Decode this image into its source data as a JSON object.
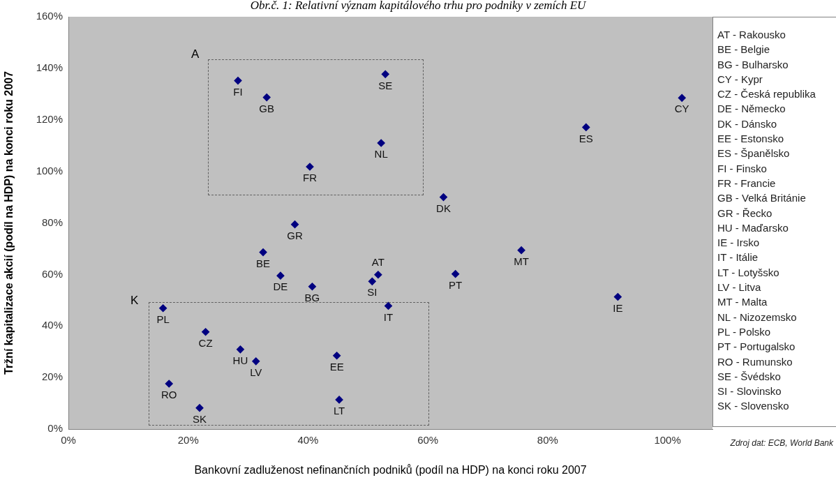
{
  "chart_data": {
    "type": "scatter",
    "title": "Obr.č. 1: Relativní význam kapitálového trhu pro podniky v zemích EU",
    "xlabel": "Bankovní zadluženost nefinančních podniků (podíl na HDP) na konci roku 2007",
    "ylabel": "Tržní kapitalizace akcií (podíl na HDP) na konci roku 2007",
    "xlim": [
      0,
      107.5
    ],
    "ylim": [
      0,
      160
    ],
    "xticks": [
      {
        "value": 0,
        "label": "0%"
      },
      {
        "value": 20,
        "label": "20%"
      },
      {
        "value": 40,
        "label": "40%"
      },
      {
        "value": 60,
        "label": "60%"
      },
      {
        "value": 80,
        "label": "80%"
      },
      {
        "value": 100,
        "label": "100%"
      }
    ],
    "yticks": [
      {
        "value": 0,
        "label": "0%"
      },
      {
        "value": 20,
        "label": "20%"
      },
      {
        "value": 40,
        "label": "40%"
      },
      {
        "value": 60,
        "label": "60%"
      },
      {
        "value": 80,
        "label": "80%"
      },
      {
        "value": 100,
        "label": "100%"
      },
      {
        "value": 120,
        "label": "120%"
      },
      {
        "value": 140,
        "label": "140%"
      },
      {
        "value": 160,
        "label": "160%"
      }
    ],
    "marker": "diamond",
    "grid": false,
    "legend": false,
    "series": [
      {
        "name": "FI",
        "color": "#000080",
        "x": [
          28.3
        ],
        "values": [
          135.2
        ]
      },
      {
        "name": "GB",
        "color": "#000080",
        "x": [
          33.1
        ],
        "values": [
          128.7
        ]
      },
      {
        "name": "SE",
        "color": "#000080",
        "x": [
          52.9
        ],
        "values": [
          137.7
        ]
      },
      {
        "name": "NL",
        "color": "#000080",
        "x": [
          52.2
        ],
        "values": [
          111.0
        ]
      },
      {
        "name": "FR",
        "color": "#000080",
        "x": [
          40.3
        ],
        "values": [
          101.8
        ]
      },
      {
        "name": "CY",
        "color": "#000080",
        "x": [
          102.4
        ],
        "values": [
          128.5
        ]
      },
      {
        "name": "ES",
        "color": "#000080",
        "x": [
          86.4
        ],
        "values": [
          117.1
        ]
      },
      {
        "name": "DK",
        "color": "#000080",
        "x": [
          62.6
        ],
        "values": [
          90.0
        ]
      },
      {
        "name": "GR",
        "color": "#000080",
        "x": [
          37.8
        ],
        "values": [
          79.4
        ]
      },
      {
        "name": "BE",
        "color": "#000080",
        "x": [
          32.5
        ],
        "values": [
          68.6
        ]
      },
      {
        "name": "MT",
        "color": "#000080",
        "x": [
          75.6
        ],
        "values": [
          69.4
        ]
      },
      {
        "name": "DE",
        "color": "#000080",
        "x": [
          35.4
        ],
        "values": [
          59.5
        ]
      },
      {
        "name": "AT",
        "color": "#000080",
        "x": [
          51.7
        ],
        "values": [
          59.9
        ]
      },
      {
        "name": "PT",
        "color": "#000080",
        "x": [
          64.6
        ],
        "values": [
          60.2
        ]
      },
      {
        "name": "SI",
        "color": "#000080",
        "x": [
          50.7
        ],
        "values": [
          57.3
        ]
      },
      {
        "name": "BG",
        "color": "#000080",
        "x": [
          40.7
        ],
        "values": [
          55.3
        ]
      },
      {
        "name": "IE",
        "color": "#000080",
        "x": [
          91.7
        ],
        "values": [
          51.3
        ]
      },
      {
        "name": "IT",
        "color": "#000080",
        "x": [
          53.4
        ],
        "values": [
          47.8
        ]
      },
      {
        "name": "PL",
        "color": "#000080",
        "x": [
          15.8
        ],
        "values": [
          46.9
        ]
      },
      {
        "name": "CZ",
        "color": "#000080",
        "x": [
          22.9
        ],
        "values": [
          37.7
        ]
      },
      {
        "name": "HU",
        "color": "#000080",
        "x": [
          28.7
        ],
        "values": [
          30.9
        ]
      },
      {
        "name": "EE",
        "color": "#000080",
        "x": [
          44.8
        ],
        "values": [
          28.5
        ]
      },
      {
        "name": "LV",
        "color": "#000080",
        "x": [
          31.3
        ],
        "values": [
          26.3
        ]
      },
      {
        "name": "RO",
        "color": "#000080",
        "x": [
          16.8
        ],
        "values": [
          17.6
        ]
      },
      {
        "name": "LT",
        "color": "#000080",
        "x": [
          45.2
        ],
        "values": [
          11.4
        ]
      },
      {
        "name": "SK",
        "color": "#000080",
        "x": [
          21.9
        ],
        "values": [
          8.2
        ]
      }
    ],
    "annotations": [
      "A",
      "K",
      "AT - Rakousko",
      "BE - Belgie",
      "BG - Bulharsko",
      "CY - Kypr",
      "CZ - Česká republika",
      "DE - Německo",
      "DK - Dánsko",
      "EE - Estonsko",
      "ES - Španělsko",
      "FI - Finsko",
      "FR - Francie",
      "GB - Velká Británie",
      "GR - Řecko",
      "HU - Maďarsko",
      "IE - Irsko",
      "IT - Itálie",
      "LT - Lotyšsko",
      "LV - Litva",
      "MT - Malta",
      "NL - Nizozemsko",
      "PL - Polsko",
      "PT - Portugalsko",
      "RO - Rumunsko",
      "SE - Švédsko",
      "SI - Slovinsko",
      "SK - Slovensko",
      "Zdroj dat: ECB, World Bank"
    ]
  }
}
